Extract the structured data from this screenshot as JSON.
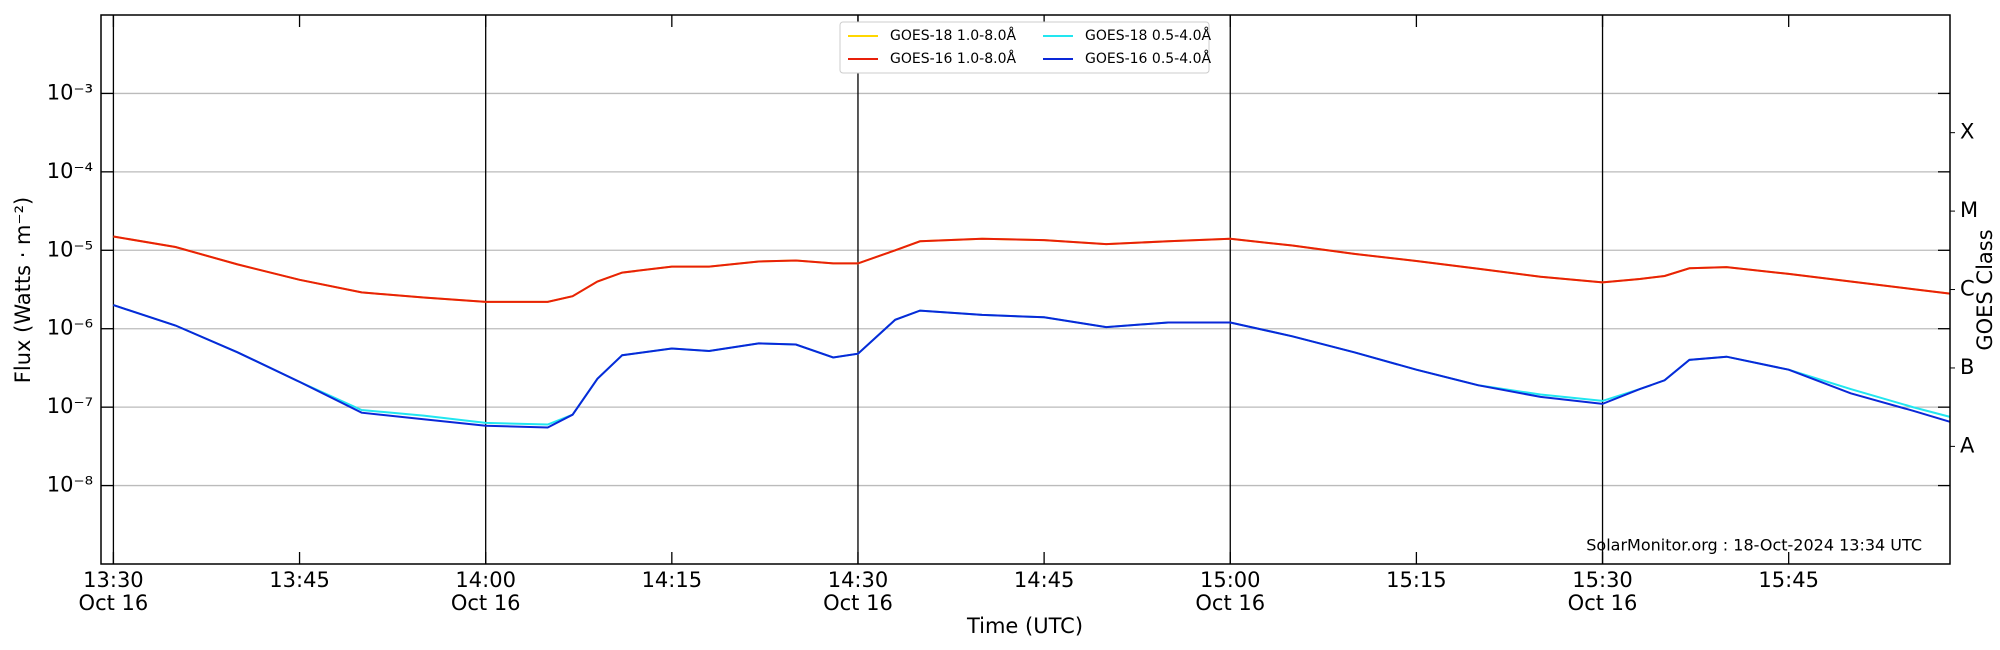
{
  "chart_data": {
    "type": "line",
    "ylabel": "Flux (Watts · m⁻²)",
    "xlabel": "Time (UTC)",
    "y2label": "GOES Class",
    "annotation": "SolarMonitor.org : 18-Oct-2024 13:34 UTC",
    "log_y": true,
    "grid": true,
    "legend": "upper center",
    "x": [
      "13:30",
      "13:35",
      "13:40",
      "13:45",
      "13:50",
      "13:55",
      "14:00",
      "14:05",
      "14:07",
      "14:09",
      "14:11",
      "14:15",
      "14:18",
      "14:22",
      "14:25",
      "14:28",
      "14:30",
      "14:33",
      "14:35",
      "14:40",
      "14:45",
      "14:50",
      "14:55",
      "15:00",
      "15:05",
      "15:10",
      "15:15",
      "15:20",
      "15:25",
      "15:30",
      "15:33",
      "15:35",
      "15:37",
      "15:40",
      "15:45",
      "15:50",
      "15:55",
      "15:58"
    ],
    "series": [
      {
        "name": "GOES-18 1.0-8.0Å",
        "color": "#ffd700",
        "values": [
          1.5e-05,
          1.1e-05,
          6.6e-06,
          4.2e-06,
          2.9e-06,
          2.5e-06,
          2.2e-06,
          2.2e-06,
          2.6e-06,
          4e-06,
          5.2e-06,
          6.2e-06,
          6.2e-06,
          7.2e-06,
          7.4e-06,
          6.8e-06,
          6.8e-06,
          1e-05,
          1.3e-05,
          1.4e-05,
          1.35e-05,
          1.2e-05,
          1.3e-05,
          1.4e-05,
          1.15e-05,
          9e-06,
          7.3e-06,
          5.8e-06,
          4.6e-06,
          3.9e-06,
          4.3e-06,
          4.7e-06,
          5.9e-06,
          6.1e-06,
          5e-06,
          4e-06,
          3.2e-06,
          2.8e-06
        ]
      },
      {
        "name": "GOES-16 1.0-8.0Å",
        "color": "#e8200a",
        "values": [
          1.5e-05,
          1.1e-05,
          6.6e-06,
          4.2e-06,
          2.9e-06,
          2.5e-06,
          2.2e-06,
          2.2e-06,
          2.6e-06,
          4e-06,
          5.2e-06,
          6.2e-06,
          6.2e-06,
          7.2e-06,
          7.4e-06,
          6.8e-06,
          6.8e-06,
          1e-05,
          1.3e-05,
          1.4e-05,
          1.35e-05,
          1.2e-05,
          1.3e-05,
          1.4e-05,
          1.15e-05,
          9e-06,
          7.3e-06,
          5.8e-06,
          4.6e-06,
          3.9e-06,
          4.3e-06,
          4.7e-06,
          5.9e-06,
          6.1e-06,
          5e-06,
          4e-06,
          3.2e-06,
          2.8e-06
        ]
      },
      {
        "name": "GOES-18 0.5-4.0Å",
        "color": "#22e6f0",
        "values": [
          2e-06,
          1.1e-06,
          5e-07,
          2.1e-07,
          9.2e-08,
          7.8e-08,
          6.3e-08,
          6e-08,
          8e-08,
          2.3e-07,
          4.6e-07,
          5.6e-07,
          5.2e-07,
          6.5e-07,
          6.3e-07,
          4.3e-07,
          4.8e-07,
          1.3e-06,
          1.7e-06,
          1.5e-06,
          1.4e-06,
          1.05e-06,
          1.2e-06,
          1.2e-06,
          8e-07,
          5e-07,
          3e-07,
          1.9e-07,
          1.45e-07,
          1.2e-07,
          1.7e-07,
          2.2e-07,
          4e-07,
          4.4e-07,
          3e-07,
          1.7e-07,
          1e-07,
          7.5e-08
        ]
      },
      {
        "name": "GOES-16 0.5-4.0Å",
        "color": "#0a28d8",
        "values": [
          2e-06,
          1.1e-06,
          5e-07,
          2.1e-07,
          8.5e-08,
          7e-08,
          5.8e-08,
          5.5e-08,
          8e-08,
          2.3e-07,
          4.6e-07,
          5.6e-07,
          5.2e-07,
          6.5e-07,
          6.3e-07,
          4.3e-07,
          4.8e-07,
          1.3e-06,
          1.7e-06,
          1.5e-06,
          1.4e-06,
          1.05e-06,
          1.2e-06,
          1.2e-06,
          8e-07,
          5e-07,
          3e-07,
          1.9e-07,
          1.35e-07,
          1.1e-07,
          1.7e-07,
          2.2e-07,
          4e-07,
          4.4e-07,
          3e-07,
          1.5e-07,
          9e-08,
          6.5e-08
        ]
      }
    ],
    "xlim": [
      "13:29",
      "15:58"
    ],
    "xticks": [
      {
        "value": "13:30",
        "label": "13:30\nOct 16"
      },
      "13:45",
      {
        "value": "14:00",
        "label": "14:00\nOct 16"
      },
      "14:15",
      {
        "value": "14:30",
        "label": "14:30\nOct 16"
      },
      "14:45",
      {
        "value": "15:00",
        "label": "15:00\nOct 16"
      },
      "15:15",
      {
        "value": "15:30",
        "label": "15:30\nOct 16"
      },
      "15:45"
    ],
    "vlines": [
      "13:30",
      "14:00",
      "14:30",
      "15:00",
      "15:30"
    ],
    "ylim": [
      1e-09,
      0.01
    ],
    "yticks": [
      {
        "value": 1e-08,
        "label": "10⁻⁸"
      },
      {
        "value": 1e-07,
        "label": "10⁻⁷"
      },
      {
        "value": 1e-06,
        "label": "10⁻⁶"
      },
      {
        "value": 1e-05,
        "label": "10⁻⁵"
      },
      {
        "value": 0.0001,
        "label": "10⁻⁴"
      },
      {
        "value": 0.001,
        "label": "10⁻³"
      }
    ],
    "y2lim": [
      1e-09,
      0.01
    ],
    "y2ticks": [
      {
        "value": 3.16e-08,
        "label": "A"
      },
      {
        "value": 3.16e-07,
        "label": "B"
      },
      {
        "value": 3.16e-06,
        "label": "C"
      },
      {
        "value": 3.16e-05,
        "label": "M"
      },
      {
        "value": 0.000316,
        "label": "X"
      }
    ]
  }
}
